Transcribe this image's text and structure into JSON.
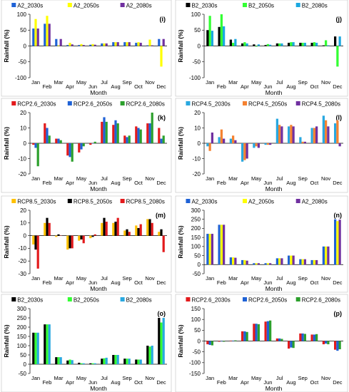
{
  "chart_data": [
    {
      "type": "bar",
      "panel_label": "(i)",
      "xlabel": "Month",
      "ylabel": "Rainfall (%)",
      "ylim": [
        -100,
        100
      ],
      "yticks": [
        -100,
        -50,
        0,
        50,
        100
      ],
      "legend_position": "top",
      "categories": [
        "Jan",
        "Feb",
        "Mar",
        "Apr",
        "May",
        "Jun",
        "Jul",
        "Aug",
        "Sep",
        "Oct",
        "Nov",
        "Dec"
      ],
      "series": [
        {
          "name": "A2_2030s",
          "color": "#1f62d6",
          "values": [
            55,
            70,
            22,
            3,
            3,
            4,
            8,
            12,
            12,
            10,
            2,
            22
          ]
        },
        {
          "name": "A2_2050s",
          "color": "#ffff00",
          "values": [
            85,
            95,
            2,
            10,
            6,
            6,
            8,
            12,
            12,
            12,
            20,
            -65
          ]
        },
        {
          "name": "A2_2080s",
          "color": "#7030a0",
          "values": [
            55,
            70,
            22,
            5,
            3,
            4,
            8,
            12,
            12,
            10,
            2,
            22
          ]
        }
      ]
    },
    {
      "type": "bar",
      "panel_label": "(j)",
      "xlabel": "Month",
      "ylabel": "Rainfall (%)",
      "ylim": [
        -100,
        100
      ],
      "yticks": [
        -100,
        -50,
        0,
        50,
        100
      ],
      "legend_position": "top",
      "categories": [
        "Jan",
        "Feb",
        "Mar",
        "Apr",
        "May",
        "Jun",
        "Jul",
        "Aug",
        "Sep",
        "Oct",
        "Nov",
        "Dec"
      ],
      "series": [
        {
          "name": "B2_2030s",
          "color": "#000000",
          "values": [
            50,
            60,
            20,
            8,
            5,
            3,
            8,
            10,
            10,
            10,
            2,
            30
          ]
        },
        {
          "name": "B2_2050s",
          "color": "#33ff33",
          "values": [
            95,
            100,
            10,
            12,
            -2,
            6,
            8,
            12,
            10,
            12,
            18,
            -65
          ]
        },
        {
          "name": "B2_2080s",
          "color": "#1ba8e0",
          "values": [
            48,
            62,
            22,
            8,
            5,
            4,
            8,
            12,
            10,
            10,
            2,
            30
          ]
        }
      ]
    },
    {
      "type": "bar",
      "panel_label": "(k)",
      "xlabel": "Month",
      "ylabel": "Rainfall (%)",
      "ylim": [
        -20,
        20
      ],
      "yticks": [
        -20,
        -10,
        0,
        10,
        20
      ],
      "legend_position": "top",
      "categories": [
        "Jan",
        "Feb",
        "Mar",
        "Apr",
        "May",
        "Jun",
        "Jul",
        "Aug",
        "Sep",
        "Oct",
        "Nov",
        "Dec"
      ],
      "series": [
        {
          "name": "RCP2.6_2030s",
          "color": "#e31a1c",
          "values": [
            -1,
            13,
            3,
            -8,
            -6,
            -1,
            14,
            12,
            5,
            11,
            13,
            10
          ]
        },
        {
          "name": "RCP2.6_2050s",
          "color": "#1f62d6",
          "values": [
            -3,
            10,
            3,
            -9,
            -4,
            0,
            17,
            15,
            4,
            10,
            13,
            3
          ]
        },
        {
          "name": "RCP2.6_2080s",
          "color": "#2ca02c",
          "values": [
            -15,
            5,
            2,
            -12,
            -2,
            1,
            14,
            13,
            5,
            9,
            20,
            5
          ]
        }
      ]
    },
    {
      "type": "bar",
      "panel_label": "(l)",
      "xlabel": "Month",
      "ylabel": "Rainfall (%)",
      "ylim": [
        -20,
        20
      ],
      "yticks": [
        -20,
        -10,
        0,
        10,
        20
      ],
      "legend_position": "top",
      "categories": [
        "Jan",
        "Feb",
        "Mar",
        "Apr",
        "May",
        "Jun",
        "Jul",
        "Aug",
        "Sep",
        "Oct",
        "Nov",
        "Dec"
      ],
      "series": [
        {
          "name": "RCP4.5_2030s",
          "color": "#29a8e0",
          "values": [
            -2,
            4,
            3,
            -12,
            -3,
            -1,
            16,
            11,
            4,
            10,
            18,
            13
          ]
        },
        {
          "name": "RCP4.5_2050s",
          "color": "#f58231",
          "values": [
            -5,
            9,
            5,
            -11,
            -2,
            -1,
            12,
            12,
            1,
            10,
            15,
            15
          ]
        },
        {
          "name": "RCP4.5_2080s",
          "color": "#7030a0",
          "values": [
            7,
            3,
            2,
            -10,
            -3,
            -1,
            11,
            11,
            1,
            11,
            11,
            -2
          ]
        }
      ]
    },
    {
      "type": "bar",
      "panel_label": "(m)",
      "xlabel": "Month",
      "ylabel": "Rainfall (%)",
      "ylim": [
        -30,
        20
      ],
      "yticks": [
        -30,
        -20,
        -10,
        0,
        10,
        20
      ],
      "legend_position": "top",
      "categories": [
        "Jan",
        "Feb",
        "Mar",
        "Apr",
        "May",
        "Jun",
        "Jul",
        "Aug",
        "Sep",
        "Oct",
        "Nov",
        "Dec"
      ],
      "series": [
        {
          "name": "RCP8.5_2030s",
          "color": "#ffc000",
          "values": [
            -7,
            10,
            -1,
            -11,
            -4,
            -2,
            10,
            10,
            4,
            8,
            13,
            3
          ]
        },
        {
          "name": "RCP8.5_2050s",
          "color": "#000000",
          "values": [
            -11,
            14,
            1,
            -10,
            -3,
            -1,
            14,
            11,
            5,
            6,
            13,
            5
          ]
        },
        {
          "name": "RCP8.5_2080s",
          "color": "#e31a1c",
          "values": [
            -26,
            10,
            0,
            -10,
            -6,
            1,
            11,
            14,
            3,
            9,
            10,
            -13
          ]
        }
      ]
    },
    {
      "type": "bar",
      "panel_label": "(n)",
      "xlabel": "Month",
      "ylabel": "Rainfall (%)",
      "ylim": [
        -50,
        300
      ],
      "yticks": [
        -50,
        0,
        50,
        100,
        150,
        200,
        250,
        300
      ],
      "legend_position": "top",
      "categories": [
        "Jan",
        "Feb",
        "Mar",
        "Apr",
        "May",
        "Jun",
        "Jul",
        "Aug",
        "Sep",
        "Oct",
        "Nov",
        "Dec"
      ],
      "series": [
        {
          "name": "A2_2030s",
          "color": "#1f62d6",
          "values": [
            170,
            220,
            40,
            25,
            8,
            8,
            35,
            50,
            30,
            25,
            100,
            250
          ]
        },
        {
          "name": "A2_2050s",
          "color": "#ffff00",
          "values": [
            170,
            220,
            40,
            25,
            8,
            8,
            35,
            50,
            30,
            25,
            100,
            240
          ]
        },
        {
          "name": "A2_2080s",
          "color": "#7030a0",
          "values": [
            170,
            220,
            38,
            22,
            8,
            8,
            35,
            50,
            30,
            25,
            100,
            248
          ]
        }
      ]
    },
    {
      "type": "bar",
      "panel_label": "(o)",
      "xlabel": "Month",
      "ylabel": "Rainfall (%)",
      "ylim": [
        -50,
        300
      ],
      "yticks": [
        -50,
        0,
        50,
        100,
        150,
        200,
        250,
        300
      ],
      "legend_position": "top",
      "categories": [
        "Jan",
        "Feb",
        "Mar",
        "Apr",
        "May",
        "Jun",
        "Jul",
        "Aug",
        "Sep",
        "Oct",
        "Nov",
        "Dec"
      ],
      "series": [
        {
          "name": "B2_2030s",
          "color": "#000000",
          "values": [
            170,
            215,
            38,
            20,
            8,
            5,
            30,
            50,
            30,
            25,
            100,
            250
          ]
        },
        {
          "name": "B2_2050s",
          "color": "#33ff33",
          "values": [
            170,
            215,
            38,
            25,
            5,
            5,
            32,
            50,
            30,
            25,
            95,
            225
          ]
        },
        {
          "name": "B2_2080s",
          "color": "#29a8e0",
          "values": [
            170,
            215,
            38,
            22,
            5,
            5,
            35,
            50,
            30,
            25,
            100,
            250
          ]
        }
      ]
    },
    {
      "type": "bar",
      "panel_label": "(p)",
      "xlabel": "Month",
      "ylabel": "Rainfall (%)",
      "ylim": [
        -150,
        150
      ],
      "yticks": [
        -150,
        -100,
        -50,
        0,
        50,
        100,
        150
      ],
      "legend_position": "top",
      "categories": [
        "Jan",
        "Feb",
        "Mar",
        "Apr",
        "May",
        "Jun",
        "Jul",
        "Aug",
        "Sep",
        "Oct",
        "Nov",
        "Dec"
      ],
      "series": [
        {
          "name": "RCP2.6_2030s",
          "color": "#e31a1c",
          "values": [
            -15,
            -3,
            2,
            45,
            80,
            90,
            12,
            -35,
            35,
            30,
            -15,
            -40
          ]
        },
        {
          "name": "RCP2.6_2050s",
          "color": "#1f62d6",
          "values": [
            -18,
            -2,
            2,
            45,
            80,
            92,
            12,
            -30,
            35,
            30,
            -12,
            -45
          ]
        },
        {
          "name": "RCP2.6_2080s",
          "color": "#2ca02c",
          "values": [
            -20,
            -3,
            3,
            42,
            78,
            95,
            10,
            -32,
            33,
            32,
            -15,
            -38
          ]
        }
      ]
    }
  ]
}
